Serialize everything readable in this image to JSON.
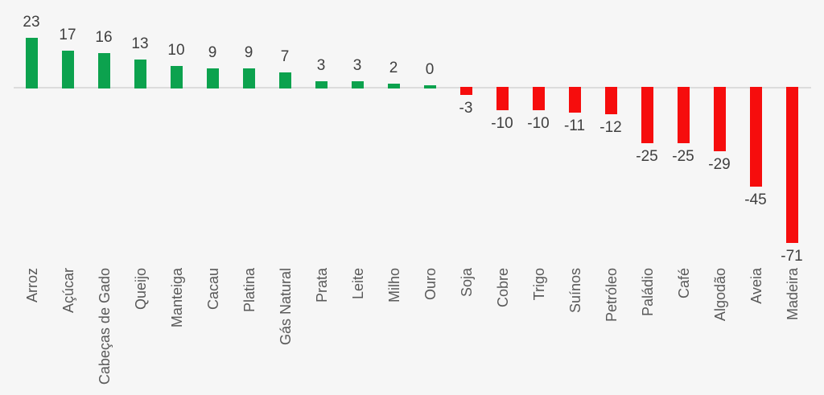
{
  "chart_data": {
    "type": "bar",
    "categories": [
      "Arroz",
      "Açúcar",
      "Cabeças de Gado",
      "Queijo",
      "Manteiga",
      "Cacau",
      "Platina",
      "Gás Natural",
      "Prata",
      "Leite",
      "Milho",
      "Ouro",
      "Soja",
      "Cobre",
      "Trigo",
      "Suínos",
      "Petróleo",
      "Paládio",
      "Café",
      "Algodão",
      "Aveia",
      "Madeira"
    ],
    "values": [
      23,
      17,
      16,
      13,
      10,
      9,
      9,
      7,
      3,
      3,
      2,
      0,
      -3,
      -10,
      -10,
      -11,
      -12,
      -25,
      -25,
      -29,
      -45,
      -71
    ],
    "title": "",
    "xlabel": "",
    "ylabel": "",
    "ylim": [
      -80,
      30
    ],
    "grid": false,
    "legend": null,
    "value_labels_visible": true,
    "positive_color": "#0ca24e",
    "negative_color": "#f60d0d",
    "value_label_color": "#3f3f3f",
    "category_label_color": "#595959",
    "axis_line_color": "#dcdcdc",
    "background_color": "#f6f6f6"
  }
}
